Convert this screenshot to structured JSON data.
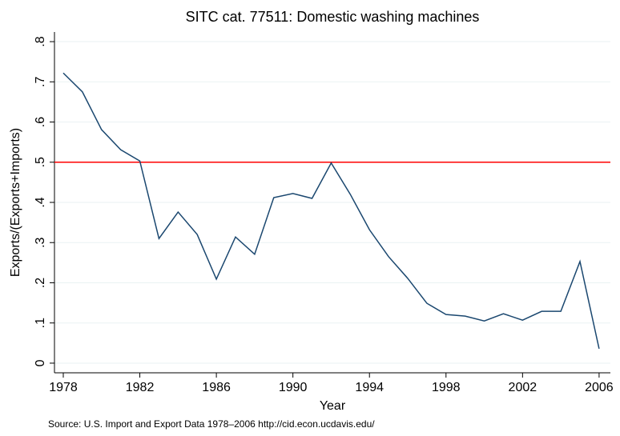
{
  "chart_data": {
    "type": "line",
    "title": "SITC cat. 77511: Domestic washing machines",
    "xlabel": "Year",
    "ylabel": "Exports/(Exports+Imports)",
    "note": "Source: U.S. Import and Export Data 1978–2006 http://cid.econ.ucdavis.edu/",
    "x": [
      1978,
      1979,
      1980,
      1981,
      1982,
      1983,
      1984,
      1985,
      1986,
      1987,
      1988,
      1989,
      1990,
      1991,
      1992,
      1993,
      1994,
      1995,
      1996,
      1997,
      1998,
      1999,
      2000,
      2001,
      2002,
      2003,
      2004,
      2005,
      2006
    ],
    "series": [
      {
        "name": "Exports/(Exports+Imports)",
        "color": "#1a476f",
        "values": [
          0.722,
          0.675,
          0.581,
          0.531,
          0.503,
          0.31,
          0.376,
          0.32,
          0.209,
          0.314,
          0.271,
          0.412,
          0.422,
          0.41,
          0.498,
          0.42,
          0.332,
          0.265,
          0.211,
          0.149,
          0.121,
          0.117,
          0.105,
          0.123,
          0.107,
          0.129,
          0.129,
          0.253,
          0.036
        ]
      }
    ],
    "reference_line": {
      "value": 0.5,
      "color": "#ff0000"
    },
    "xlim": [
      1977.54,
      2006.59
    ],
    "ylim": [
      -0.024,
      0.824
    ],
    "xticks": [
      1978,
      1982,
      1986,
      1990,
      1994,
      1998,
      2002,
      2006
    ],
    "yticks": [
      0,
      {
        "value": 0.1,
        "label": ".1"
      },
      {
        "value": 0.2,
        "label": ".2"
      },
      {
        "value": 0.3,
        "label": ".3"
      },
      {
        "value": 0.4,
        "label": ".4"
      },
      {
        "value": 0.5,
        "label": ".5"
      },
      {
        "value": 0.6,
        "label": ".6"
      },
      {
        "value": 0.7,
        "label": ".7"
      },
      {
        "value": 0.8,
        "label": ".8"
      }
    ],
    "grid": true
  }
}
